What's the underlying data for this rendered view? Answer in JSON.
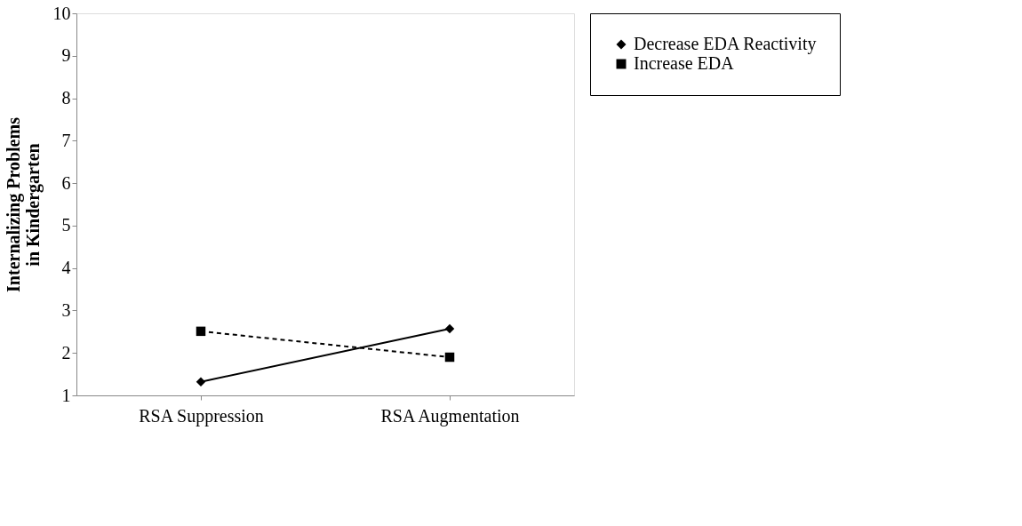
{
  "chart_data": {
    "type": "line",
    "ylabel": "Internalizing Problems\nin Kindergarten",
    "categories": [
      "RSA Suppression",
      "RSA Augmentation"
    ],
    "series": [
      {
        "name": "Decrease EDA Reactivity",
        "color": "#000000",
        "values": [
          1.32,
          2.57
        ],
        "marker": "diamond",
        "line_style": "solid"
      },
      {
        "name": "Increase EDA",
        "color": "#000000",
        "values": [
          2.51,
          1.9
        ],
        "marker": "square",
        "line_style": "dashed"
      }
    ],
    "ylim": [
      1,
      10
    ],
    "yticks": [
      1,
      2,
      3,
      4,
      5,
      6,
      7,
      8,
      9,
      10
    ],
    "grid": false,
    "legend": "right"
  }
}
